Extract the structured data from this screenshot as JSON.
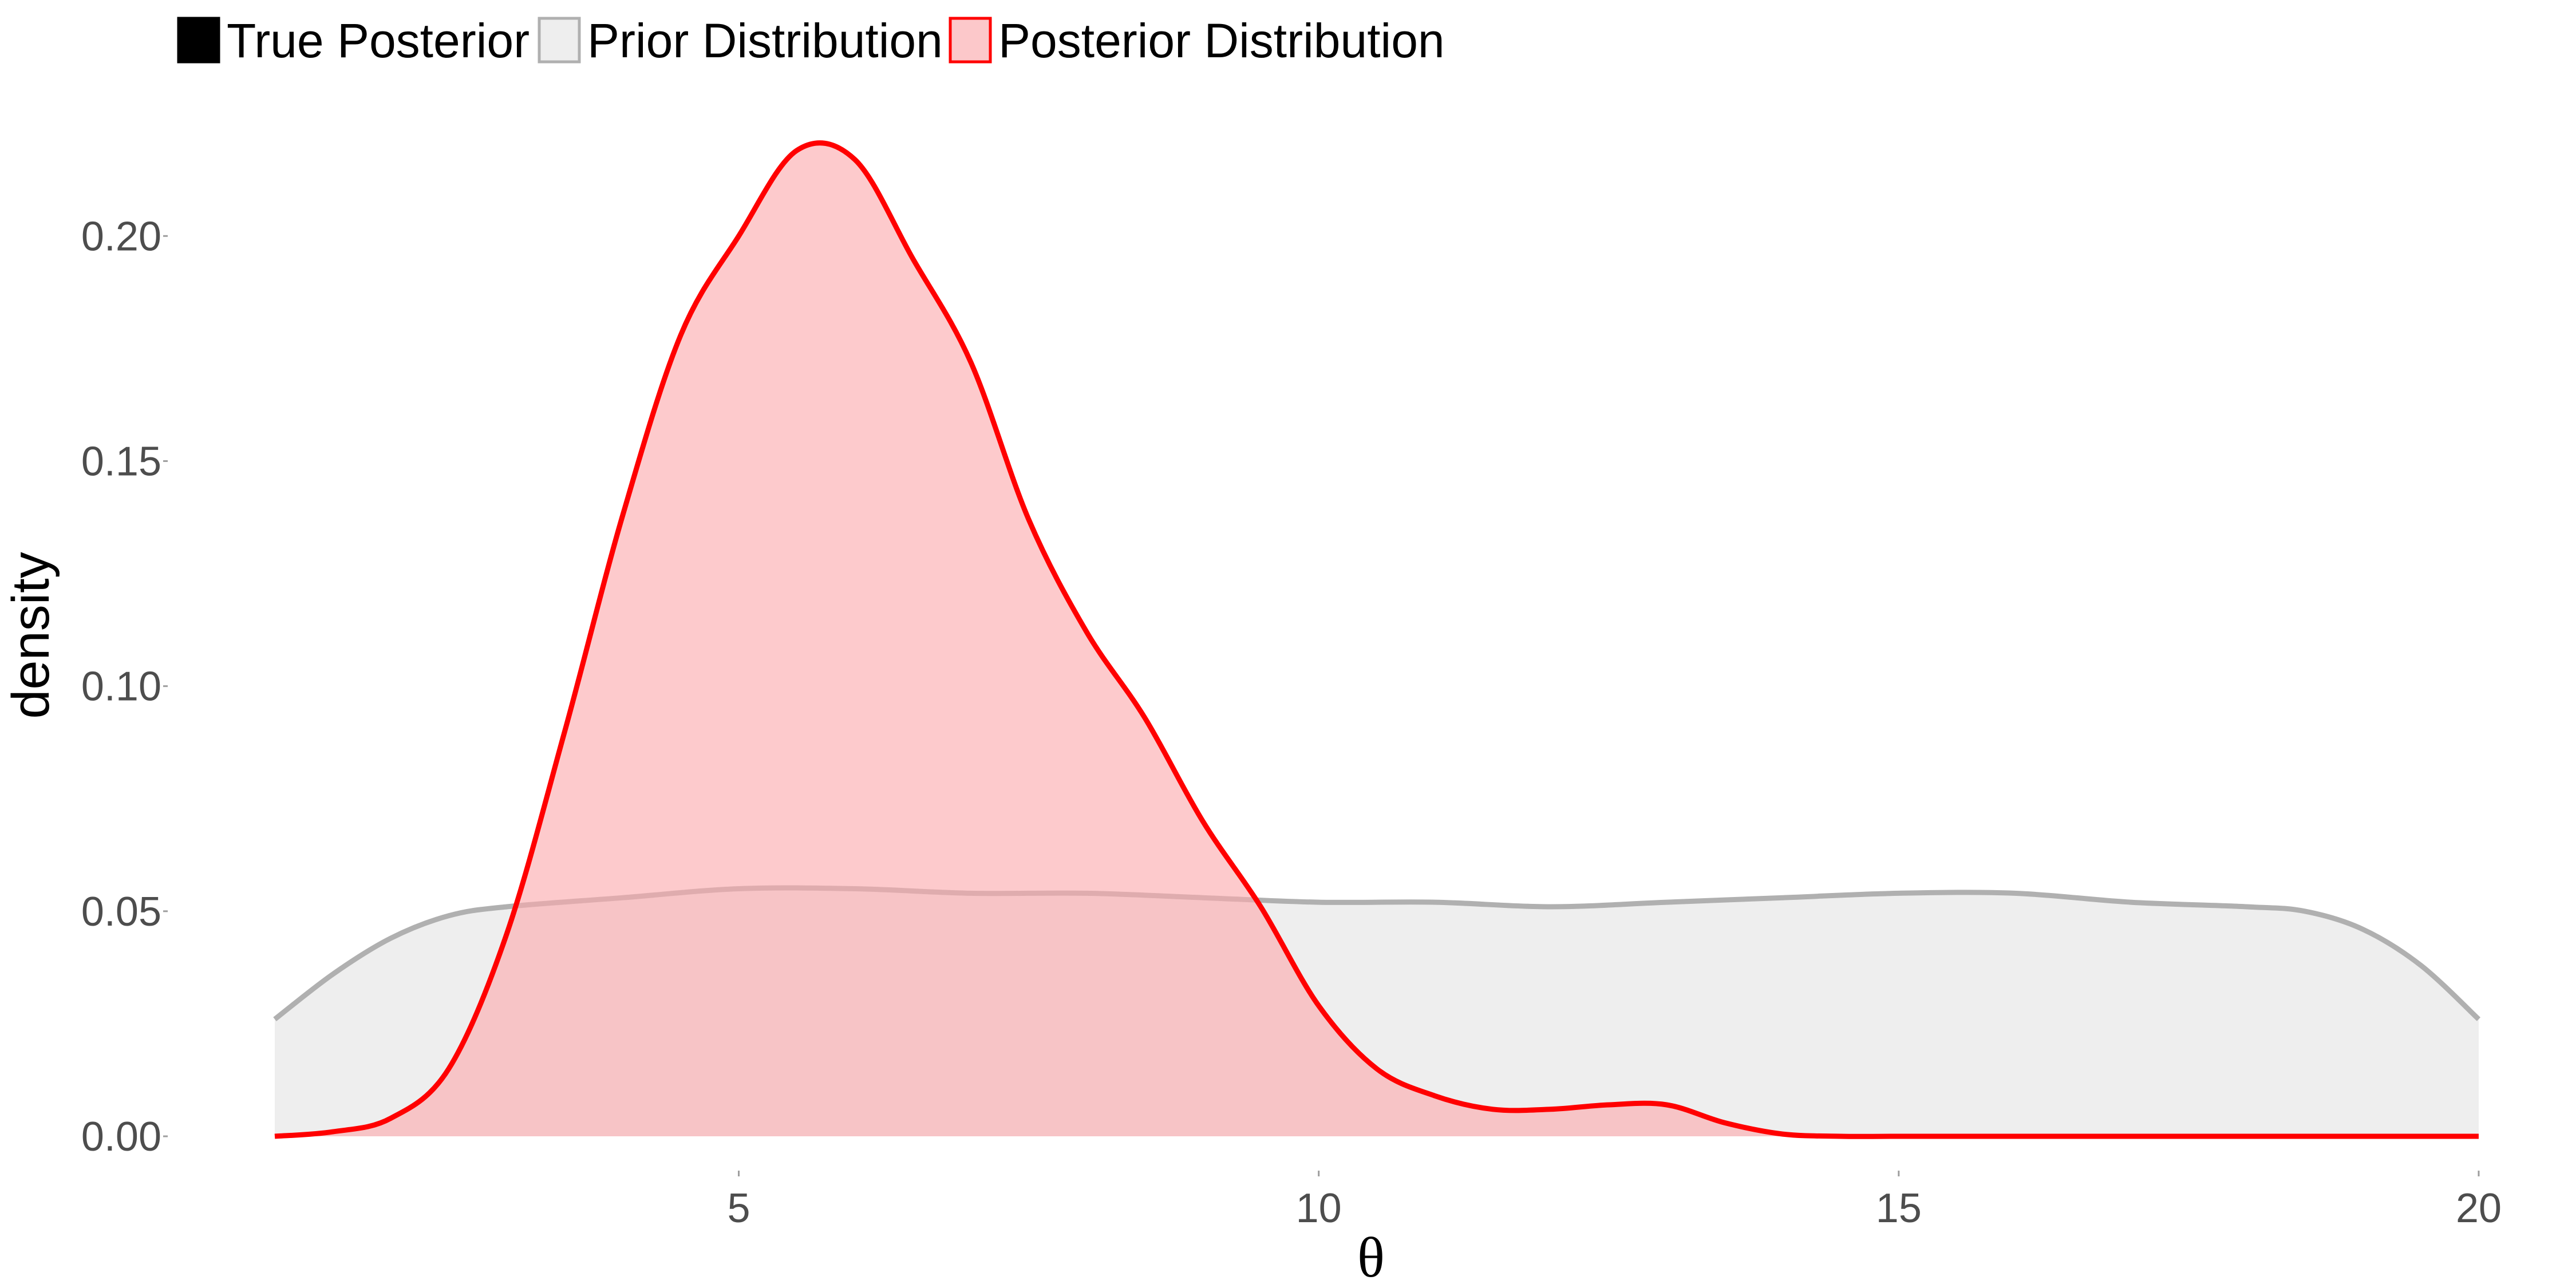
{
  "chart_data": {
    "type": "area",
    "title": "",
    "xlabel": "θ",
    "ylabel": "density",
    "xlim": [
      1.0,
      20.0
    ],
    "ylim": [
      0.0,
      0.22
    ],
    "x_ticks": [
      5,
      10,
      15,
      20
    ],
    "x_tick_labels": [
      "5",
      "10",
      "15",
      "20"
    ],
    "y_ticks": [
      0.0,
      0.05,
      0.1,
      0.15,
      0.2
    ],
    "y_tick_labels": [
      "0.00",
      "0.05",
      "0.10",
      "0.15",
      "0.20"
    ],
    "grid": false,
    "legend": {
      "position": "top-left",
      "entries": [
        {
          "label": "True Posterior",
          "fill": "#000000",
          "stroke": "#000000"
        },
        {
          "label": "Prior Distribution",
          "fill": "#eeeeee",
          "stroke": "#b0b0b0"
        },
        {
          "label": "Posterior Distribution",
          "fill": "#fcc8ca",
          "stroke": "#ff0000"
        }
      ]
    },
    "series": [
      {
        "name": "Prior Distribution",
        "fill": "#eeeeee",
        "fill_opacity": 1.0,
        "stroke": "#b0b0b0",
        "x": [
          1.0,
          1.5,
          2.0,
          2.5,
          3.0,
          4.0,
          5.0,
          6.0,
          7.0,
          8.0,
          9.0,
          10.0,
          11.0,
          12.0,
          13.0,
          14.0,
          15.0,
          16.0,
          17.0,
          18.0,
          18.5,
          19.0,
          19.5,
          20.0
        ],
        "y": [
          0.026,
          0.036,
          0.044,
          0.049,
          0.051,
          0.053,
          0.055,
          0.055,
          0.054,
          0.054,
          0.053,
          0.052,
          0.052,
          0.051,
          0.052,
          0.053,
          0.054,
          0.054,
          0.052,
          0.051,
          0.05,
          0.046,
          0.038,
          0.026
        ]
      },
      {
        "name": "Posterior Distribution",
        "fill": "#fcaaad",
        "fill_opacity": 0.62,
        "stroke": "#ff0000",
        "x": [
          1.0,
          1.5,
          2.0,
          2.5,
          3.0,
          3.5,
          4.0,
          4.5,
          5.0,
          5.5,
          6.0,
          6.5,
          7.0,
          7.5,
          8.0,
          8.5,
          9.0,
          9.5,
          10.0,
          10.5,
          11.0,
          11.5,
          12.0,
          12.5,
          13.0,
          13.5,
          14.0,
          14.5,
          15.0,
          16.0,
          17.0,
          18.0,
          19.0,
          20.0
        ],
        "y": [
          0.0,
          0.001,
          0.004,
          0.015,
          0.045,
          0.09,
          0.138,
          0.178,
          0.2,
          0.219,
          0.217,
          0.195,
          0.172,
          0.137,
          0.112,
          0.093,
          0.07,
          0.051,
          0.029,
          0.015,
          0.009,
          0.006,
          0.006,
          0.007,
          0.007,
          0.003,
          0.0005,
          0.0,
          0.0,
          0.0,
          0.0,
          0.0,
          0.0,
          0.0
        ]
      }
    ]
  }
}
